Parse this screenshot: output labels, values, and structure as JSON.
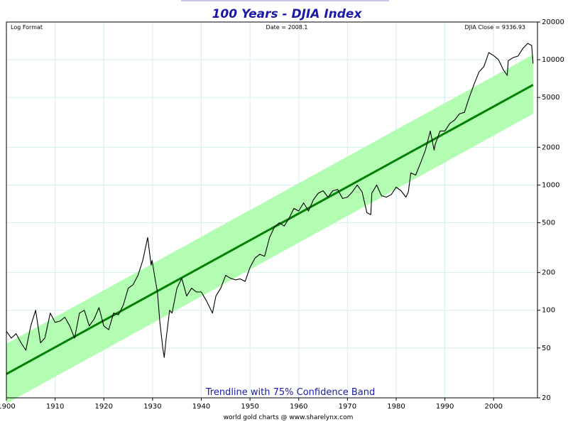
{
  "chart_data": {
    "type": "line",
    "title": "100 Years - DJIA Index",
    "header_left": "Log Format",
    "header_center": "Date = 2008.1",
    "header_right": "DJIA Close = 9336.93",
    "band_label": "Trendline with 75% Confidence Band",
    "credit": "world gold charts @ www.sharelynx.com",
    "x_range": [
      1900,
      2009
    ],
    "y_range": [
      20,
      20000
    ],
    "y_scale": "log",
    "grid": true,
    "x_ticks": [
      "1900",
      "1910",
      "1920",
      "1930",
      "1940",
      "1950",
      "1960",
      "1970",
      "1980",
      "1990",
      "2000"
    ],
    "x_tick_values": [
      1900,
      1910,
      1920,
      1930,
      1940,
      1950,
      1960,
      1970,
      1980,
      1990,
      2000
    ],
    "y_ticks": [
      "20000",
      "10000",
      "5000",
      "2000",
      "1000",
      "500",
      "200",
      "100",
      "50",
      "20"
    ],
    "y_tick_values": [
      20000,
      10000,
      5000,
      2000,
      1000,
      500,
      200,
      100,
      50,
      20
    ],
    "colors": {
      "price_line": "#000000",
      "trend_line": "#008000",
      "band_fill": "#b2fdb2",
      "grid": "#d6eeee",
      "title": "#1a1aa6"
    },
    "series": [
      {
        "kind": "price",
        "x": [
          1900,
          1901,
          1902,
          1903,
          1904,
          1905,
          1906,
          1907,
          1907.9,
          1909,
          1910,
          1911,
          1912,
          1913,
          1914,
          1915,
          1916,
          1917,
          1918,
          1919,
          1920,
          1921,
          1922,
          1923,
          1924,
          1925,
          1926,
          1927,
          1928,
          1929,
          1929.7,
          1929.9,
          1930.5,
          1931,
          1931.5,
          1932.1,
          1932.4,
          1932.8,
          1933.5,
          1934,
          1935,
          1936,
          1937,
          1938,
          1939,
          1940,
          1941,
          1942.3,
          1943,
          1944,
          1945,
          1946,
          1947,
          1948,
          1949,
          1950,
          1951,
          1952,
          1953,
          1954,
          1955,
          1956,
          1957,
          1958,
          1959,
          1960,
          1961,
          1962,
          1963,
          1964,
          1965,
          1966,
          1967,
          1968,
          1969,
          1970,
          1971,
          1972,
          1973,
          1974,
          1974.8,
          1975,
          1976,
          1977,
          1978,
          1979,
          1980,
          1981,
          1982,
          1982.5,
          1983,
          1984,
          1985,
          1986,
          1987,
          1987.8,
          1988,
          1989,
          1990,
          1991,
          1992,
          1993,
          1994,
          1995,
          1996,
          1997,
          1998,
          1999,
          2000,
          2001,
          2002,
          2002.8,
          2003,
          2004,
          2005,
          2006,
          2007,
          2007.8,
          2008.1
        ],
        "y": [
          68,
          60,
          65,
          55,
          48,
          75,
          100,
          55,
          60,
          95,
          80,
          82,
          88,
          75,
          60,
          95,
          100,
          75,
          85,
          105,
          75,
          70,
          95,
          92,
          110,
          150,
          160,
          190,
          250,
          381,
          230,
          250,
          180,
          140,
          80,
          50,
          42,
          60,
          100,
          95,
          150,
          180,
          130,
          150,
          140,
          140,
          120,
          95,
          130,
          150,
          190,
          180,
          175,
          178,
          170,
          220,
          260,
          280,
          270,
          380,
          460,
          500,
          470,
          540,
          650,
          620,
          720,
          620,
          760,
          860,
          900,
          800,
          900,
          920,
          780,
          800,
          880,
          1000,
          880,
          600,
          580,
          860,
          1000,
          820,
          800,
          840,
          960,
          900,
          800,
          880,
          1250,
          1200,
          1500,
          1900,
          2700,
          1900,
          2100,
          2700,
          2700,
          3100,
          3300,
          3700,
          3800,
          5000,
          6400,
          8000,
          8800,
          11400,
          10800,
          10000,
          8300,
          7500,
          9800,
          10400,
          10700,
          12300,
          13500,
          13000,
          9336.93
        ]
      },
      {
        "kind": "trend",
        "x": [
          1900,
          2008.1
        ],
        "y": [
          31,
          6300
        ]
      },
      {
        "kind": "band",
        "x": [
          1900,
          2008.1
        ],
        "upper": [
          54,
          11000
        ],
        "lower": [
          18,
          3700
        ]
      }
    ]
  }
}
